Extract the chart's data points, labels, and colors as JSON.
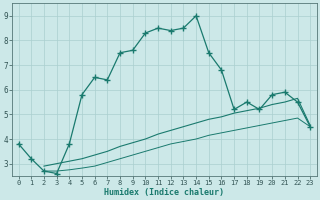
{
  "line1_x": [
    0,
    1,
    2,
    3,
    4,
    5,
    6,
    7,
    8,
    9,
    10,
    11,
    12,
    13,
    14,
    15,
    16,
    17,
    18,
    19,
    20,
    21,
    22,
    23
  ],
  "line1_y": [
    3.8,
    3.2,
    2.7,
    2.6,
    3.8,
    5.8,
    6.5,
    6.4,
    7.5,
    7.6,
    8.3,
    8.5,
    8.4,
    8.5,
    9.0,
    7.5,
    6.8,
    5.2,
    5.5,
    5.2,
    5.8,
    5.9,
    5.5,
    4.5
  ],
  "line2_x": [
    2,
    3,
    4,
    5,
    6,
    7,
    8,
    9,
    10,
    11,
    12,
    13,
    14,
    15,
    16,
    17,
    18,
    19,
    20,
    21,
    22,
    23
  ],
  "line2_y": [
    2.9,
    3.0,
    3.1,
    3.2,
    3.35,
    3.5,
    3.7,
    3.85,
    4.0,
    4.2,
    4.35,
    4.5,
    4.65,
    4.8,
    4.9,
    5.05,
    5.15,
    5.25,
    5.4,
    5.5,
    5.65,
    4.55
  ],
  "line3_x": [
    2,
    3,
    4,
    5,
    6,
    7,
    8,
    9,
    10,
    11,
    12,
    13,
    14,
    15,
    16,
    17,
    18,
    19,
    20,
    21,
    22,
    23
  ],
  "line3_y": [
    2.7,
    2.7,
    2.75,
    2.82,
    2.9,
    3.05,
    3.2,
    3.35,
    3.5,
    3.65,
    3.8,
    3.9,
    4.0,
    4.15,
    4.25,
    4.35,
    4.45,
    4.55,
    4.65,
    4.75,
    4.85,
    4.5
  ],
  "line_color": "#1a7a6e",
  "bg_color": "#cce8e8",
  "grid_color": "#aacfcf",
  "xlabel": "Humidex (Indice chaleur)",
  "xlim": [
    -0.5,
    23.5
  ],
  "ylim": [
    2.5,
    9.5
  ],
  "yticks": [
    3,
    4,
    5,
    6,
    7,
    8,
    9
  ],
  "xticks": [
    0,
    1,
    2,
    3,
    4,
    5,
    6,
    7,
    8,
    9,
    10,
    11,
    12,
    13,
    14,
    15,
    16,
    17,
    18,
    19,
    20,
    21,
    22,
    23
  ]
}
